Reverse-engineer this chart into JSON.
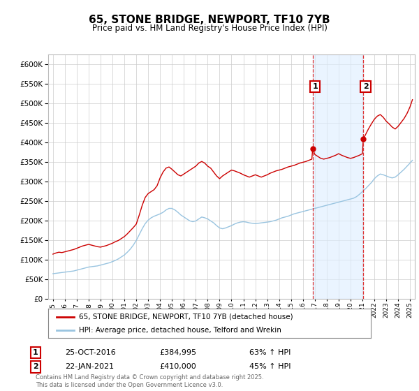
{
  "title": "65, STONE BRIDGE, NEWPORT, TF10 7YB",
  "subtitle": "Price paid vs. HM Land Registry's House Price Index (HPI)",
  "background_color": "#ffffff",
  "plot_bg_color": "#ffffff",
  "ylim": [
    0,
    625000
  ],
  "yticks": [
    0,
    50000,
    100000,
    150000,
    200000,
    250000,
    300000,
    350000,
    400000,
    450000,
    500000,
    550000,
    600000
  ],
  "grid_color": "#cccccc",
  "red_color": "#cc0000",
  "blue_color": "#99c4e0",
  "marker1_x": 2016.82,
  "marker1_y": 384995,
  "marker2_x": 2021.07,
  "marker2_y": 410000,
  "vline1_x": 2016.82,
  "vline2_x": 2021.07,
  "shade_color": "#ddeeff",
  "legend_label_red": "65, STONE BRIDGE, NEWPORT, TF10 7YB (detached house)",
  "legend_label_blue": "HPI: Average price, detached house, Telford and Wrekin",
  "annotation1_label": "1",
  "annotation2_label": "2",
  "sale1_date": "25-OCT-2016",
  "sale1_price": "£384,995",
  "sale1_hpi": "63% ↑ HPI",
  "sale2_date": "22-JAN-2021",
  "sale2_price": "£410,000",
  "sale2_hpi": "45% ↑ HPI",
  "footer": "Contains HM Land Registry data © Crown copyright and database right 2025.\nThis data is licensed under the Open Government Licence v3.0.",
  "xmin": 1994.6,
  "xmax": 2025.4,
  "red_data": [
    [
      1995.0,
      115000
    ],
    [
      1995.25,
      118000
    ],
    [
      1995.5,
      120000
    ],
    [
      1995.75,
      119000
    ],
    [
      1996.0,
      121000
    ],
    [
      1996.25,
      123000
    ],
    [
      1996.5,
      125000
    ],
    [
      1996.75,
      127000
    ],
    [
      1997.0,
      130000
    ],
    [
      1997.25,
      133000
    ],
    [
      1997.5,
      136000
    ],
    [
      1997.75,
      138000
    ],
    [
      1998.0,
      140000
    ],
    [
      1998.25,
      138000
    ],
    [
      1998.5,
      136000
    ],
    [
      1998.75,
      134000
    ],
    [
      1999.0,
      133000
    ],
    [
      1999.25,
      135000
    ],
    [
      1999.5,
      137000
    ],
    [
      1999.75,
      140000
    ],
    [
      2000.0,
      143000
    ],
    [
      2000.25,
      147000
    ],
    [
      2000.5,
      150000
    ],
    [
      2000.75,
      155000
    ],
    [
      2001.0,
      160000
    ],
    [
      2001.25,
      167000
    ],
    [
      2001.5,
      175000
    ],
    [
      2001.75,
      183000
    ],
    [
      2002.0,
      192000
    ],
    [
      2002.25,
      215000
    ],
    [
      2002.5,
      240000
    ],
    [
      2002.75,
      260000
    ],
    [
      2003.0,
      270000
    ],
    [
      2003.25,
      275000
    ],
    [
      2003.5,
      280000
    ],
    [
      2003.75,
      290000
    ],
    [
      2004.0,
      310000
    ],
    [
      2004.25,
      325000
    ],
    [
      2004.5,
      335000
    ],
    [
      2004.75,
      338000
    ],
    [
      2005.0,
      332000
    ],
    [
      2005.25,
      325000
    ],
    [
      2005.5,
      318000
    ],
    [
      2005.75,
      315000
    ],
    [
      2006.0,
      320000
    ],
    [
      2006.25,
      325000
    ],
    [
      2006.5,
      330000
    ],
    [
      2006.75,
      335000
    ],
    [
      2007.0,
      340000
    ],
    [
      2007.25,
      348000
    ],
    [
      2007.5,
      352000
    ],
    [
      2007.75,
      348000
    ],
    [
      2008.0,
      340000
    ],
    [
      2008.25,
      335000
    ],
    [
      2008.5,
      325000
    ],
    [
      2008.75,
      315000
    ],
    [
      2009.0,
      308000
    ],
    [
      2009.25,
      315000
    ],
    [
      2009.5,
      320000
    ],
    [
      2009.75,
      325000
    ],
    [
      2010.0,
      330000
    ],
    [
      2010.25,
      328000
    ],
    [
      2010.5,
      325000
    ],
    [
      2010.75,
      322000
    ],
    [
      2011.0,
      318000
    ],
    [
      2011.25,
      315000
    ],
    [
      2011.5,
      312000
    ],
    [
      2011.75,
      315000
    ],
    [
      2012.0,
      318000
    ],
    [
      2012.25,
      315000
    ],
    [
      2012.5,
      312000
    ],
    [
      2012.75,
      315000
    ],
    [
      2013.0,
      318000
    ],
    [
      2013.25,
      322000
    ],
    [
      2013.5,
      325000
    ],
    [
      2013.75,
      328000
    ],
    [
      2014.0,
      330000
    ],
    [
      2014.25,
      332000
    ],
    [
      2014.5,
      335000
    ],
    [
      2014.75,
      338000
    ],
    [
      2015.0,
      340000
    ],
    [
      2015.25,
      342000
    ],
    [
      2015.5,
      345000
    ],
    [
      2015.75,
      348000
    ],
    [
      2016.0,
      350000
    ],
    [
      2016.25,
      352000
    ],
    [
      2016.5,
      355000
    ],
    [
      2016.75,
      358000
    ],
    [
      2016.82,
      384995
    ],
    [
      2017.0,
      370000
    ],
    [
      2017.25,
      365000
    ],
    [
      2017.5,
      360000
    ],
    [
      2017.75,
      358000
    ],
    [
      2018.0,
      360000
    ],
    [
      2018.25,
      362000
    ],
    [
      2018.5,
      365000
    ],
    [
      2018.75,
      368000
    ],
    [
      2019.0,
      372000
    ],
    [
      2019.25,
      368000
    ],
    [
      2019.5,
      365000
    ],
    [
      2019.75,
      362000
    ],
    [
      2020.0,
      360000
    ],
    [
      2020.25,
      362000
    ],
    [
      2020.5,
      365000
    ],
    [
      2020.75,
      368000
    ],
    [
      2021.0,
      372000
    ],
    [
      2021.07,
      410000
    ],
    [
      2021.25,
      420000
    ],
    [
      2021.5,
      435000
    ],
    [
      2021.75,
      448000
    ],
    [
      2022.0,
      460000
    ],
    [
      2022.25,
      468000
    ],
    [
      2022.5,
      472000
    ],
    [
      2022.75,
      465000
    ],
    [
      2023.0,
      455000
    ],
    [
      2023.25,
      448000
    ],
    [
      2023.5,
      440000
    ],
    [
      2023.75,
      435000
    ],
    [
      2024.0,
      442000
    ],
    [
      2024.25,
      452000
    ],
    [
      2024.5,
      462000
    ],
    [
      2024.75,
      475000
    ],
    [
      2025.0,
      492000
    ],
    [
      2025.2,
      510000
    ]
  ],
  "blue_data": [
    [
      1995.0,
      65000
    ],
    [
      1995.25,
      66000
    ],
    [
      1995.5,
      67000
    ],
    [
      1995.75,
      68000
    ],
    [
      1996.0,
      69000
    ],
    [
      1996.25,
      70000
    ],
    [
      1996.5,
      71000
    ],
    [
      1996.75,
      72000
    ],
    [
      1997.0,
      74000
    ],
    [
      1997.25,
      76000
    ],
    [
      1997.5,
      78000
    ],
    [
      1997.75,
      80000
    ],
    [
      1998.0,
      82000
    ],
    [
      1998.25,
      83000
    ],
    [
      1998.5,
      84000
    ],
    [
      1998.75,
      85000
    ],
    [
      1999.0,
      87000
    ],
    [
      1999.25,
      89000
    ],
    [
      1999.5,
      91000
    ],
    [
      1999.75,
      93000
    ],
    [
      2000.0,
      96000
    ],
    [
      2000.25,
      99000
    ],
    [
      2000.5,
      103000
    ],
    [
      2000.75,
      108000
    ],
    [
      2001.0,
      113000
    ],
    [
      2001.25,
      120000
    ],
    [
      2001.5,
      128000
    ],
    [
      2001.75,
      138000
    ],
    [
      2002.0,
      150000
    ],
    [
      2002.25,
      165000
    ],
    [
      2002.5,
      180000
    ],
    [
      2002.75,
      193000
    ],
    [
      2003.0,
      202000
    ],
    [
      2003.25,
      208000
    ],
    [
      2003.5,
      212000
    ],
    [
      2003.75,
      215000
    ],
    [
      2004.0,
      218000
    ],
    [
      2004.25,
      222000
    ],
    [
      2004.5,
      228000
    ],
    [
      2004.75,
      232000
    ],
    [
      2005.0,
      232000
    ],
    [
      2005.25,
      228000
    ],
    [
      2005.5,
      222000
    ],
    [
      2005.75,
      215000
    ],
    [
      2006.0,
      210000
    ],
    [
      2006.25,
      205000
    ],
    [
      2006.5,
      200000
    ],
    [
      2006.75,
      198000
    ],
    [
      2007.0,
      200000
    ],
    [
      2007.25,
      205000
    ],
    [
      2007.5,
      210000
    ],
    [
      2007.75,
      208000
    ],
    [
      2008.0,
      205000
    ],
    [
      2008.25,
      200000
    ],
    [
      2008.5,
      195000
    ],
    [
      2008.75,
      188000
    ],
    [
      2009.0,
      182000
    ],
    [
      2009.25,
      180000
    ],
    [
      2009.5,
      182000
    ],
    [
      2009.75,
      185000
    ],
    [
      2010.0,
      188000
    ],
    [
      2010.25,
      192000
    ],
    [
      2010.5,
      195000
    ],
    [
      2010.75,
      197000
    ],
    [
      2011.0,
      198000
    ],
    [
      2011.25,
      197000
    ],
    [
      2011.5,
      195000
    ],
    [
      2011.75,
      194000
    ],
    [
      2012.0,
      193000
    ],
    [
      2012.25,
      194000
    ],
    [
      2012.5,
      195000
    ],
    [
      2012.75,
      196000
    ],
    [
      2013.0,
      197000
    ],
    [
      2013.25,
      198000
    ],
    [
      2013.5,
      200000
    ],
    [
      2013.75,
      202000
    ],
    [
      2014.0,
      205000
    ],
    [
      2014.25,
      208000
    ],
    [
      2014.5,
      210000
    ],
    [
      2014.75,
      212000
    ],
    [
      2015.0,
      215000
    ],
    [
      2015.25,
      218000
    ],
    [
      2015.5,
      220000
    ],
    [
      2015.75,
      222000
    ],
    [
      2016.0,
      224000
    ],
    [
      2016.25,
      226000
    ],
    [
      2016.5,
      228000
    ],
    [
      2016.75,
      230000
    ],
    [
      2017.0,
      232000
    ],
    [
      2017.25,
      234000
    ],
    [
      2017.5,
      236000
    ],
    [
      2017.75,
      238000
    ],
    [
      2018.0,
      240000
    ],
    [
      2018.25,
      242000
    ],
    [
      2018.5,
      244000
    ],
    [
      2018.75,
      246000
    ],
    [
      2019.0,
      248000
    ],
    [
      2019.25,
      250000
    ],
    [
      2019.5,
      252000
    ],
    [
      2019.75,
      254000
    ],
    [
      2020.0,
      256000
    ],
    [
      2020.25,
      258000
    ],
    [
      2020.5,
      262000
    ],
    [
      2020.75,
      268000
    ],
    [
      2021.0,
      275000
    ],
    [
      2021.25,
      282000
    ],
    [
      2021.5,
      290000
    ],
    [
      2021.75,
      298000
    ],
    [
      2022.0,
      308000
    ],
    [
      2022.25,
      315000
    ],
    [
      2022.5,
      320000
    ],
    [
      2022.75,
      318000
    ],
    [
      2023.0,
      315000
    ],
    [
      2023.25,
      312000
    ],
    [
      2023.5,
      310000
    ],
    [
      2023.75,
      312000
    ],
    [
      2024.0,
      318000
    ],
    [
      2024.25,
      325000
    ],
    [
      2024.5,
      332000
    ],
    [
      2024.75,
      340000
    ],
    [
      2025.0,
      348000
    ],
    [
      2025.2,
      355000
    ]
  ]
}
